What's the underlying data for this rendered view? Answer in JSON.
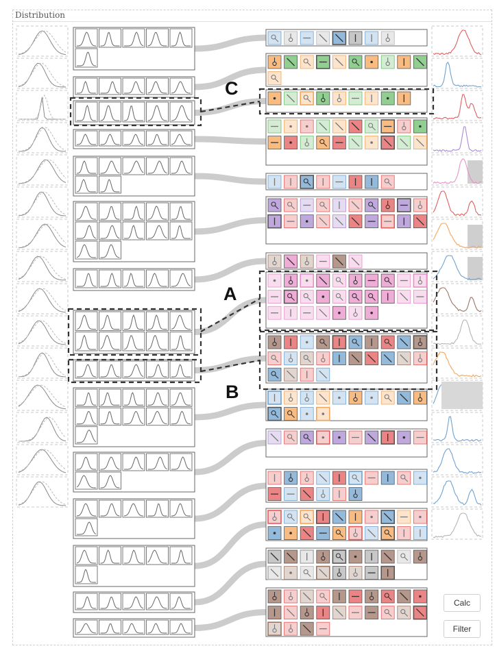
{
  "panel": {
    "title": "Distribution"
  },
  "buttons": {
    "calc": "Calc",
    "filter": "Filter"
  },
  "callouts": {
    "a": "A",
    "b": "B",
    "c": "C"
  },
  "colors": {
    "blue": "#6fa1cf",
    "orange": "#f5a55a",
    "green": "#6cbf6c",
    "red": "#e45c5c",
    "purple": "#a98bd0",
    "pink": "#e890c8",
    "brown": "#9c7464",
    "gray": "#b4b4b4",
    "link": "#cccccc",
    "border": "#666666",
    "curve": "#999999",
    "dash": "#333333"
  },
  "groups": [
    {
      "name": "group-1",
      "glyphs": 6,
      "cells": 8,
      "palette": [
        "blue",
        "gray"
      ],
      "accent": "red"
    },
    {
      "name": "group-2",
      "glyphs": 5,
      "cells": 11,
      "palette": [
        "orange",
        "green"
      ],
      "accent": "blue"
    },
    {
      "name": "group-3",
      "glyphs": 5,
      "cells": 9,
      "palette": [
        "orange",
        "green"
      ],
      "accent": "red",
      "highlight": "C"
    },
    {
      "name": "group-4",
      "glyphs": 5,
      "cells": 21,
      "palette": [
        "green",
        "orange",
        "red"
      ],
      "accent": "purple"
    },
    {
      "name": "group-5",
      "glyphs": 7,
      "cells": 8,
      "palette": [
        "blue",
        "red"
      ],
      "accent": "pink"
    },
    {
      "name": "group-6",
      "glyphs": 12,
      "cells": 29,
      "palette": [
        "purple",
        "red"
      ],
      "accent": "red"
    },
    {
      "name": "group-7",
      "glyphs": 7,
      "cells": 6,
      "palette": [
        "brown",
        "pink"
      ],
      "accent": "orange"
    },
    {
      "name": "group-8",
      "glyphs": 10,
      "cells": 27,
      "palette": [
        "pink"
      ],
      "accent": "blue",
      "highlight": "A"
    },
    {
      "name": "group-9",
      "glyphs": 5,
      "cells": 24,
      "palette": [
        "brown",
        "red",
        "blue"
      ],
      "accent": "brown",
      "highlight": "B"
    },
    {
      "name": "group-10",
      "glyphs": 11,
      "cells": 14,
      "palette": [
        "blue",
        "orange"
      ],
      "accent": "gray"
    },
    {
      "name": "group-11",
      "glyphs": 7,
      "cells": 11,
      "palette": [
        "purple",
        "red"
      ],
      "accent": "orange"
    },
    {
      "name": "group-12",
      "glyphs": 6,
      "cells": 16,
      "palette": [
        "red",
        "blue"
      ],
      "accent": "blue"
    },
    {
      "name": "group-13",
      "glyphs": 6,
      "cells": 20,
      "palette": [
        "red",
        "blue",
        "orange"
      ],
      "accent": "blue"
    },
    {
      "name": "group-14",
      "glyphs": 6,
      "cells": 18,
      "palette": [
        "gray",
        "brown"
      ],
      "accent": "blue"
    },
    {
      "name": "group-15",
      "glyphs": 5,
      "cells": 24,
      "palette": [
        "brown",
        "red"
      ],
      "accent": "blue"
    },
    {
      "name": "group-16",
      "glyphs": 5,
      "cells": 4,
      "palette": [
        "brown"
      ],
      "accent": "gray"
    }
  ],
  "left_thumbnails": 15
}
